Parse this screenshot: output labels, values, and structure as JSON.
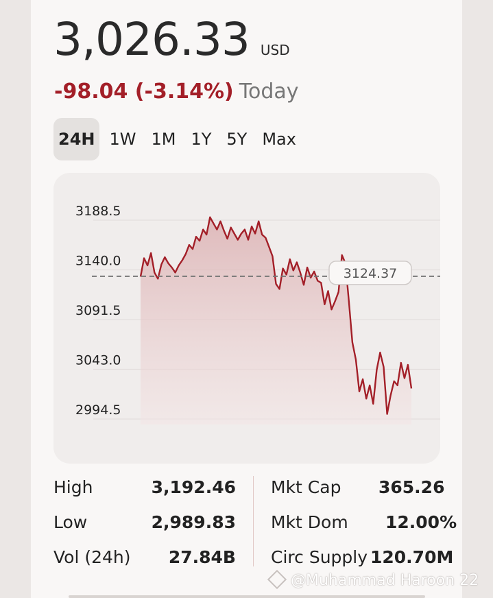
{
  "header": {
    "price": "3,026.33",
    "currency": "USD",
    "change": "-98.04 (-3.14%)",
    "period": "Today"
  },
  "tabs": [
    "24H",
    "1W",
    "1M",
    "1Y",
    "5Y",
    "Max"
  ],
  "active_tab": "24H",
  "colors": {
    "accent_red": "#a31f28",
    "line": "#a31f28"
  },
  "chart_data": {
    "type": "area",
    "ylim": [
      2980,
      3210
    ],
    "y_ticks": [
      {
        "value": 3188.5,
        "label": "3188.5"
      },
      {
        "value": 3140.0,
        "label": "3140.0"
      },
      {
        "value": 3091.5,
        "label": "3091.5"
      },
      {
        "value": 3043.0,
        "label": "3043.0"
      },
      {
        "value": 2994.5,
        "label": "2994.5"
      }
    ],
    "reference_value": 3124.37,
    "reference_label": "3124.37",
    "grid": true,
    "values": [
      3124,
      3142,
      3135,
      3147,
      3128,
      3122,
      3136,
      3143,
      3137,
      3133,
      3128,
      3135,
      3140,
      3146,
      3155,
      3151,
      3163,
      3159,
      3170,
      3165,
      3182,
      3176,
      3170,
      3178,
      3169,
      3161,
      3172,
      3166,
      3160,
      3166,
      3170,
      3160,
      3173,
      3166,
      3178,
      3165,
      3162,
      3153,
      3144,
      3117,
      3112,
      3132,
      3126,
      3141,
      3130,
      3138,
      3128,
      3116,
      3133,
      3123,
      3129,
      3120,
      3118,
      3097,
      3110,
      3092,
      3100,
      3109,
      3145,
      3137,
      3100,
      3060,
      3043,
      3012,
      3024,
      3005,
      3018,
      3000,
      3033,
      3050,
      3036,
      2990,
      3008,
      3022,
      3018,
      3040,
      3025,
      3038,
      3015
    ]
  },
  "stats": {
    "left": [
      {
        "label": "High",
        "value": "3,192.46"
      },
      {
        "label": "Low",
        "value": "2,989.83"
      },
      {
        "label": "Vol (24h)",
        "value": "27.84B"
      }
    ],
    "right": [
      {
        "label": "Mkt Cap",
        "value": "365.26"
      },
      {
        "label": "Mkt Dom",
        "value": "12.00%"
      },
      {
        "label": "Circ Supply",
        "value": "120.70M"
      }
    ]
  },
  "watermark": "@Muhammad Haroon 22"
}
